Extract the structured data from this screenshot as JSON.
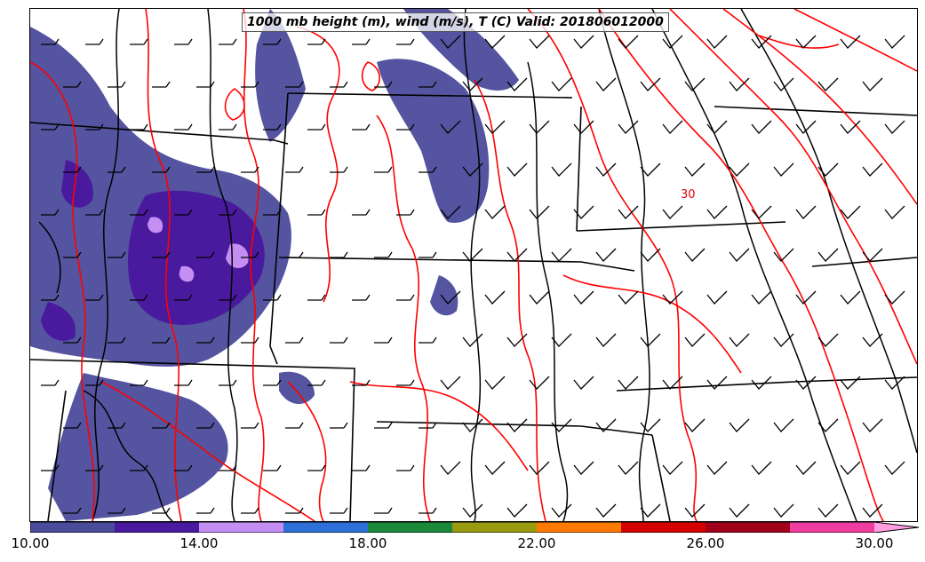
{
  "title": "1000 mb height (m), wind (m/s), T (C) Valid: 201806012000",
  "contour_label": "30",
  "colors": {
    "temperature_contour": "#ff0000",
    "height_contour": "#000000",
    "state_border": "#000000"
  },
  "colorbar": {
    "min": 10.0,
    "max": 30.0,
    "extend": "max",
    "ticks": [
      "10.00",
      "14.00",
      "18.00",
      "22.00",
      "26.00",
      "30.00"
    ],
    "segments": [
      "#4b4b9b",
      "#4a1a9e",
      "#c58ef2",
      "#2f6fd8",
      "#1a8a3a",
      "#9a9a10",
      "#ff7a00",
      "#d40000",
      "#a0001a",
      "#f03da0",
      "#ff9ee0"
    ]
  }
}
